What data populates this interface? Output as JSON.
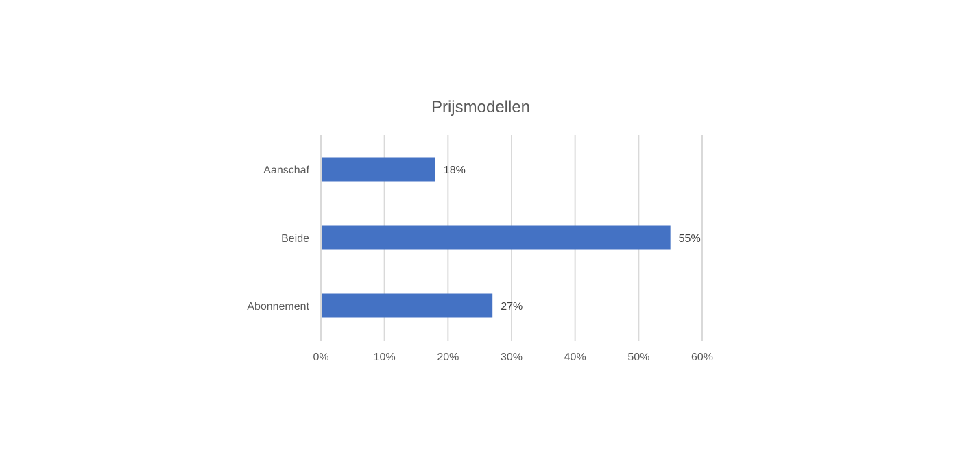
{
  "chart_data": {
    "type": "bar",
    "orientation": "horizontal",
    "title": "Prijsmodellen",
    "xlabel": "",
    "ylabel": "",
    "categories": [
      "Aanschaf",
      "Beide",
      "Abonnement"
    ],
    "values": [
      18,
      55,
      27
    ],
    "data_labels": [
      "18%",
      "55%",
      "27%"
    ],
    "xlim": [
      0,
      60
    ],
    "x_ticks": [
      0,
      10,
      20,
      30,
      40,
      50,
      60
    ],
    "x_tick_labels": [
      "0%",
      "10%",
      "20%",
      "30%",
      "40%",
      "50%",
      "60%"
    ],
    "grid": true,
    "legend": "none",
    "bar_color": "#4472C4"
  }
}
